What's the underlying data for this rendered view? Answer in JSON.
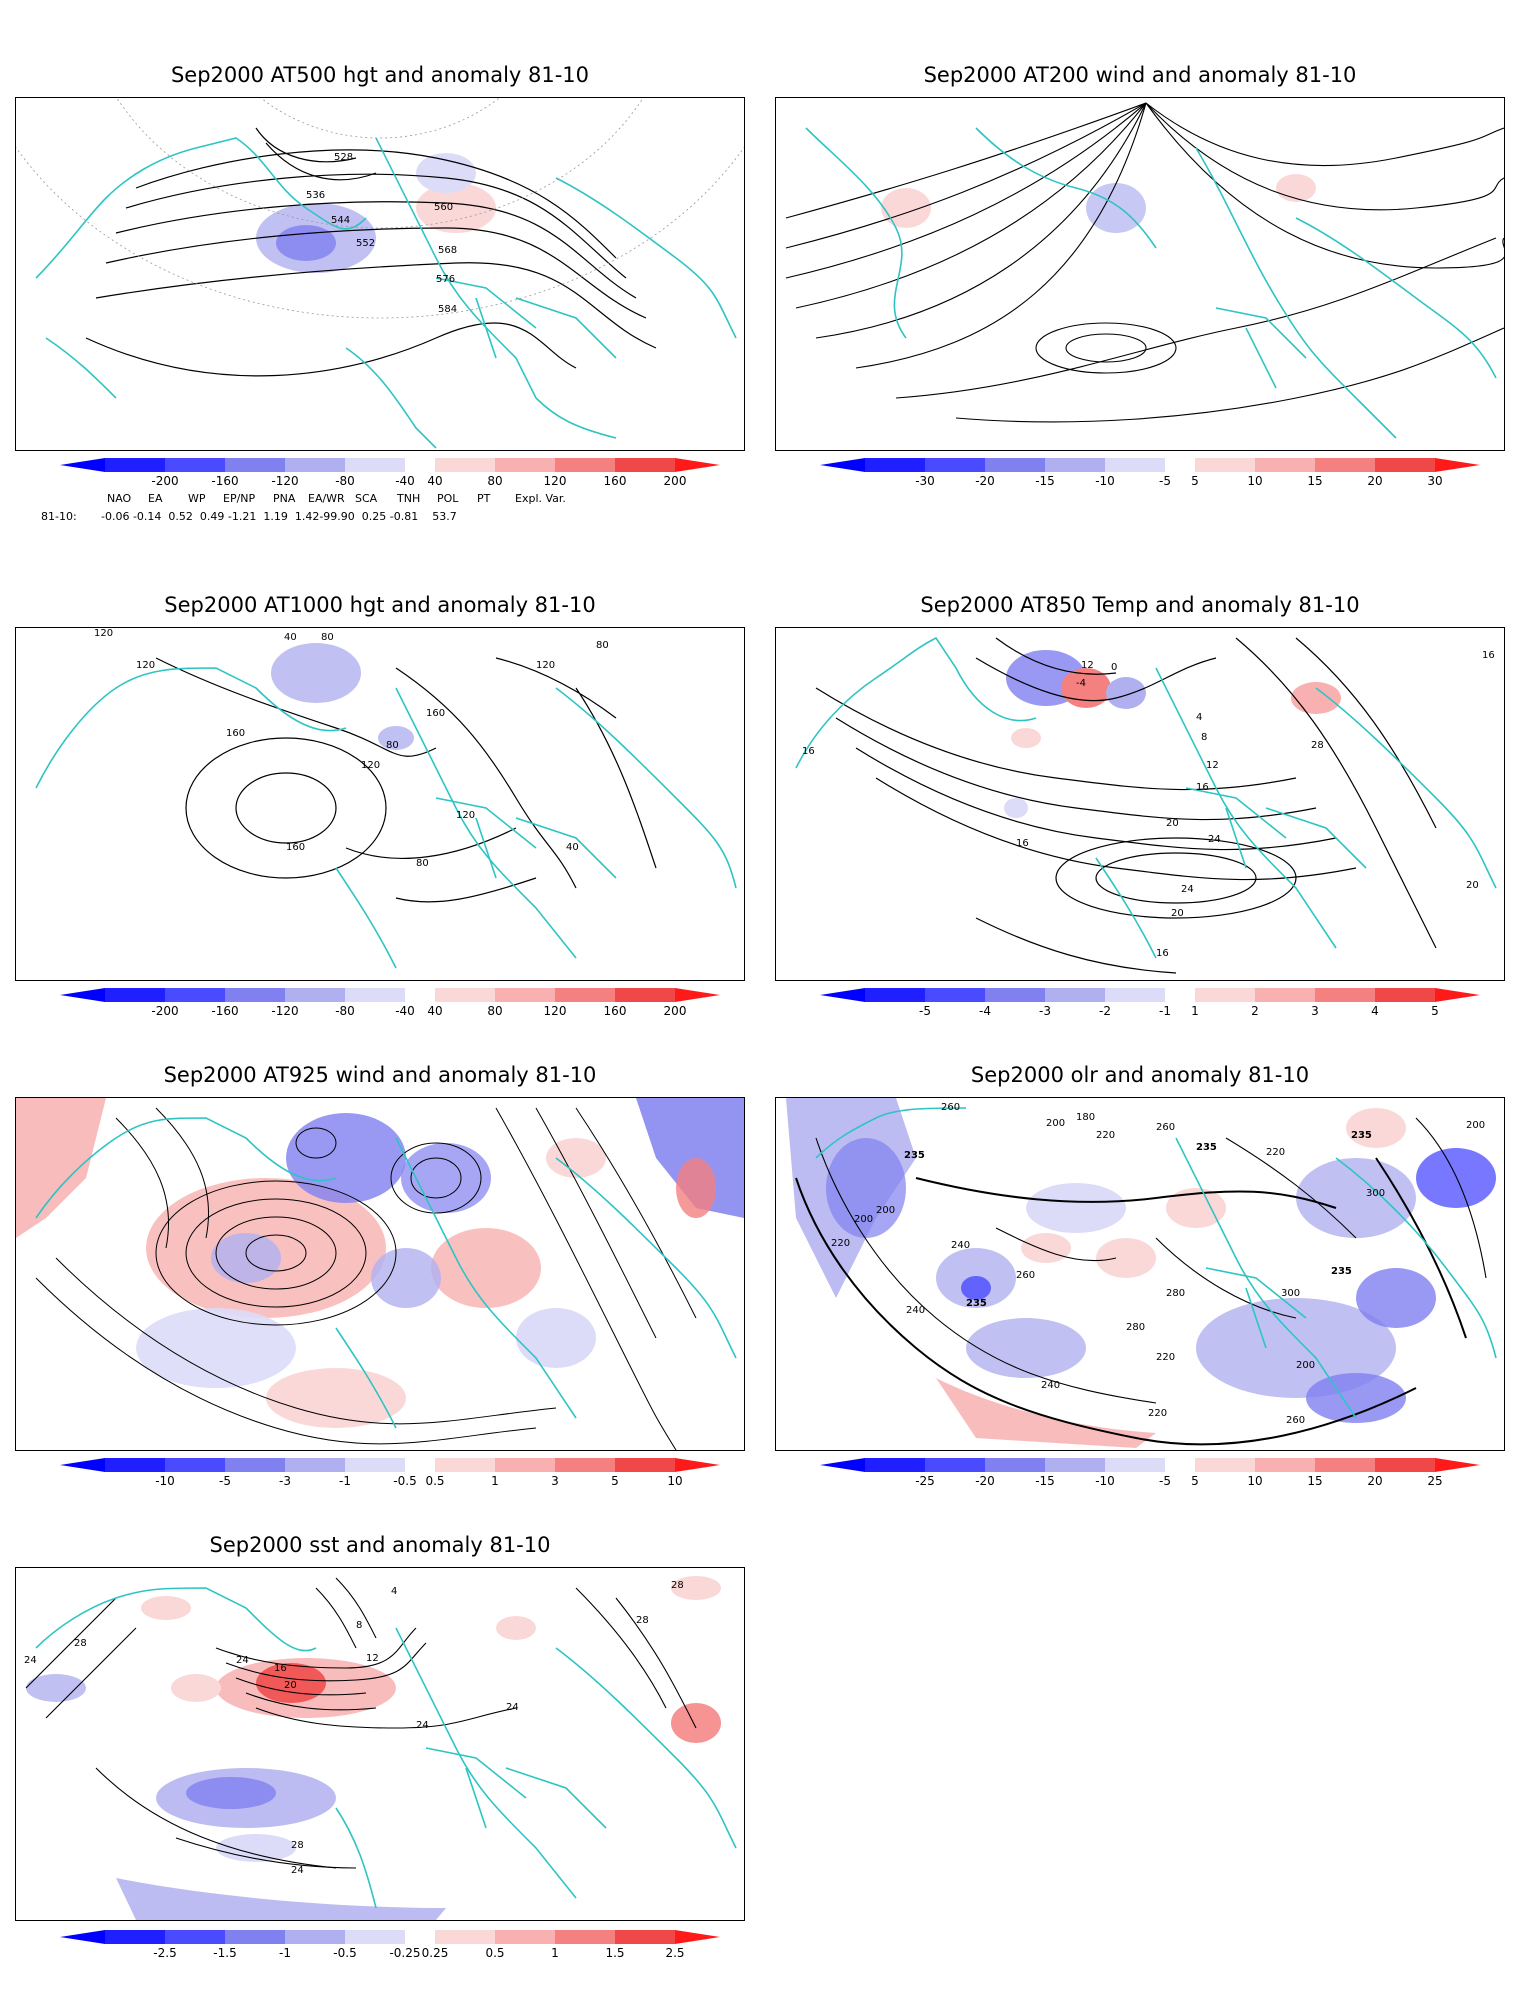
{
  "panels": [
    {
      "id": "at500",
      "title": "Sep2000 AT500 hgt and anomaly 81-10",
      "colorbar": [
        "-200",
        "-160",
        "-120",
        "-80",
        "-40",
        "40",
        "80",
        "120",
        "160",
        "200"
      ],
      "contour_labels": [
        "528",
        "536",
        "544",
        "552",
        "560",
        "568",
        "576",
        "584"
      ]
    },
    {
      "id": "at200",
      "title": "Sep2000 AT200 wind and anomaly 81-10",
      "colorbar": [
        "-30",
        "-20",
        "-15",
        "-10",
        "-5",
        "5",
        "10",
        "15",
        "20",
        "30"
      ],
      "contour_labels": []
    },
    {
      "id": "at1000",
      "title": "Sep2000 AT1000 hgt and anomaly 81-10",
      "colorbar": [
        "-200",
        "-160",
        "-120",
        "-80",
        "-40",
        "40",
        "80",
        "120",
        "160",
        "200"
      ],
      "contour_labels": [
        "120",
        "120",
        "40",
        "80",
        "160",
        "120",
        "80",
        "160",
        "120",
        "80",
        "40",
        "120",
        "80",
        "160"
      ]
    },
    {
      "id": "at850",
      "title": "Sep2000 AT850 Temp and anomaly 81-10",
      "colorbar": [
        "-5",
        "-4",
        "-3",
        "-2",
        "-1",
        "1",
        "2",
        "3",
        "4",
        "5"
      ],
      "contour_labels": [
        "16",
        "12",
        "0",
        "-4",
        "4",
        "8",
        "12",
        "16",
        "20",
        "24",
        "28",
        "24",
        "20",
        "16",
        "16",
        "20",
        "16"
      ]
    },
    {
      "id": "at925",
      "title": "Sep2000 AT925 wind and anomaly 81-10",
      "colorbar": [
        "-10",
        "-5",
        "-3",
        "-1",
        "-0.5",
        "0.5",
        "1",
        "3",
        "5",
        "10"
      ],
      "contour_labels": []
    },
    {
      "id": "olr",
      "title": "Sep2000 olr and anomaly 81-10",
      "colorbar": [
        "-25",
        "-20",
        "-15",
        "-10",
        "-5",
        "5",
        "10",
        "15",
        "20",
        "25"
      ],
      "contour_labels": [
        "260",
        "180",
        "200",
        "220",
        "235",
        "260",
        "200",
        "220",
        "235",
        "240",
        "280",
        "300",
        "235",
        "220",
        "200",
        "260",
        "240",
        "235",
        "220",
        "200",
        "260",
        "280",
        "300",
        "235",
        "240",
        "220",
        "200"
      ]
    },
    {
      "id": "sst",
      "title": "Sep2000 sst and anomaly 81-10",
      "colorbar": [
        "-2.5",
        "-1.5",
        "-1",
        "-0.5",
        "-0.25",
        "0.25",
        "0.5",
        "1",
        "1.5",
        "2.5"
      ],
      "contour_labels": [
        "28",
        "24",
        "28",
        "24",
        "16",
        "20",
        "12",
        "8",
        "4",
        "24",
        "28",
        "24",
        "28",
        "24"
      ]
    }
  ],
  "teleconnections": {
    "headers": [
      "NAO",
      "EA",
      "WP",
      "EP/NP",
      "PNA",
      "EA/WR",
      "SCA",
      "TNH",
      "POL",
      "PT",
      "Expl. Var."
    ],
    "row_label": "81-10:",
    "values": "-0.06 -0.14  0.52  0.49 -1.21  1.19  1.42-99.90  0.25 -0.81    53.7"
  },
  "colors": {
    "coast": "#2ec4c4",
    "contour": "#000000",
    "neg": [
      "#1f1fff",
      "#4a4aff",
      "#8080f0",
      "#b0b0f0",
      "#dcdcf8"
    ],
    "pos": [
      "#fbd8d8",
      "#f8b0b0",
      "#f48080",
      "#f04848",
      "#ff1a1a"
    ]
  }
}
